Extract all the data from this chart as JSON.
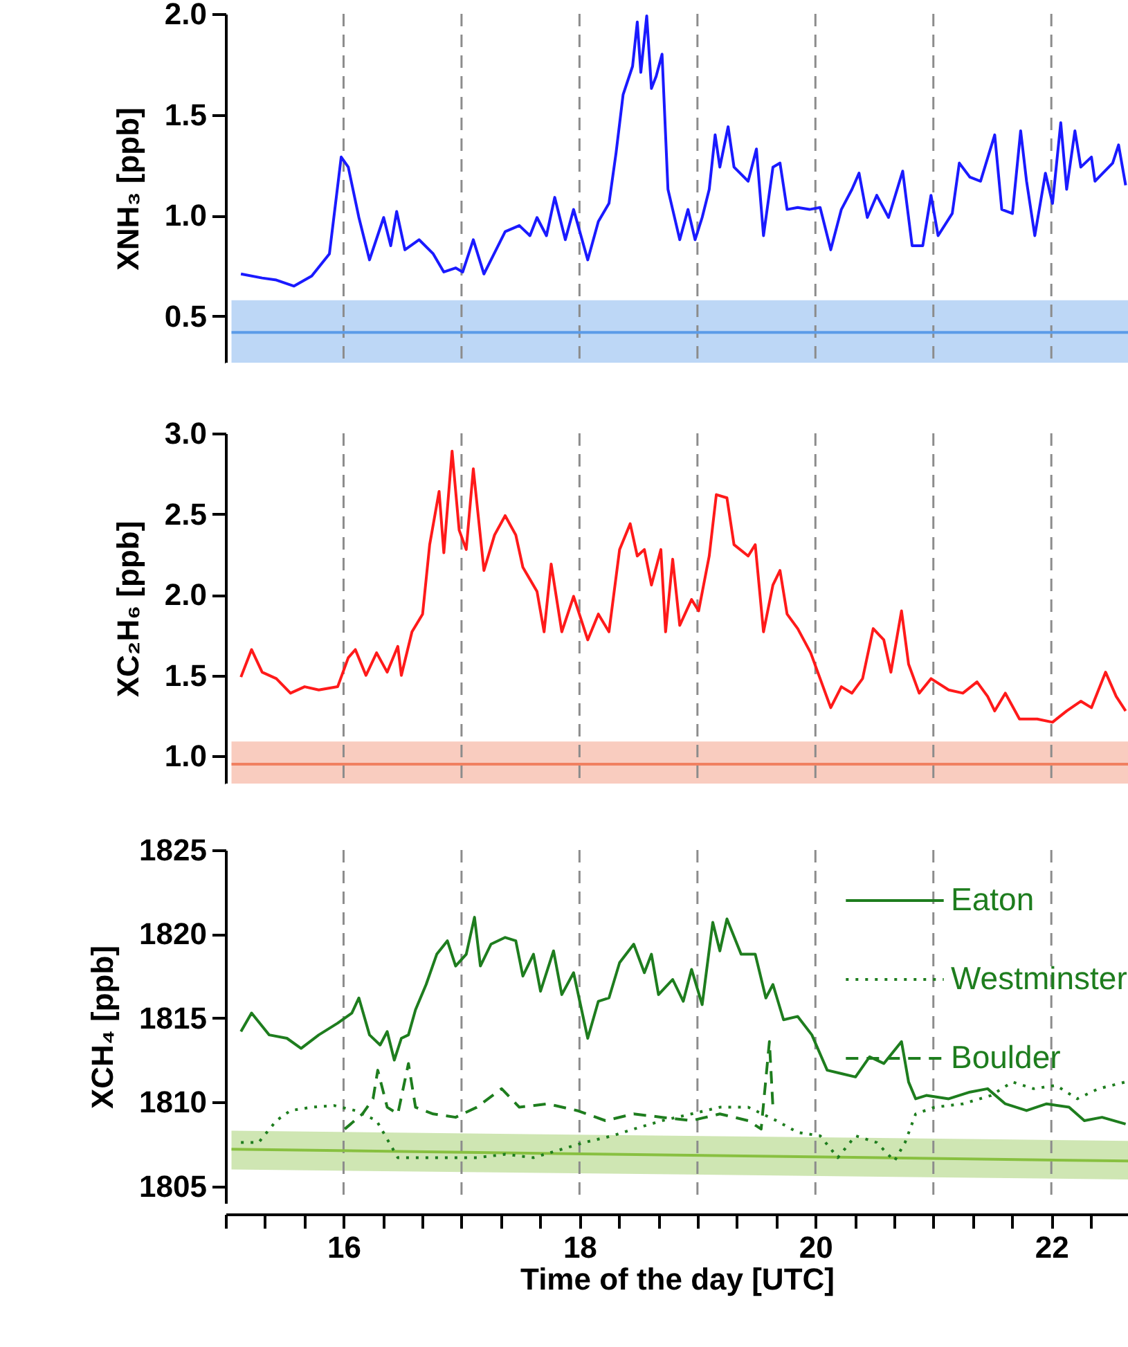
{
  "chart_data": [
    {
      "type": "line",
      "ylabel": "XNH₃ [ppb]",
      "xlim": [
        15,
        22.65
      ],
      "ylim": [
        0.27,
        2.0
      ],
      "yticks": [
        0.5,
        {
          "value": 1,
          "label": "1.0"
        },
        1.5,
        {
          "value": 2,
          "label": "2.0"
        }
      ],
      "tick_labels": "y",
      "ref_lines": [
        {
          "axis": "x",
          "value": 16,
          "color": "#8c8c8c",
          "line_style": "dashed"
        },
        {
          "axis": "x",
          "value": 17,
          "color": "#8c8c8c",
          "line_style": "dashed"
        },
        {
          "axis": "x",
          "value": 18,
          "color": "#8c8c8c",
          "line_style": "dashed"
        },
        {
          "axis": "x",
          "value": 19,
          "color": "#8c8c8c",
          "line_style": "dashed"
        },
        {
          "axis": "x",
          "value": 20,
          "color": "#8c8c8c",
          "line_style": "dashed"
        },
        {
          "axis": "x",
          "value": 21,
          "color": "#8c8c8c",
          "line_style": "dashed"
        },
        {
          "axis": "x",
          "value": 22,
          "color": "#8c8c8c",
          "line_style": "dashed"
        }
      ],
      "series": [
        {
          "color": "#1a1aff",
          "line_style": "solid",
          "x": [
            15.13,
            15.31,
            15.43,
            15.58,
            15.73,
            15.88,
            15.98,
            16.04,
            16.13,
            16.22,
            16.34,
            16.4,
            16.45,
            16.52,
            16.64,
            16.76,
            16.85,
            16.95,
            17.01,
            17.1,
            17.19,
            17.37,
            17.49,
            17.58,
            17.64,
            17.72,
            17.79,
            17.88,
            17.95,
            18.07,
            18.16,
            18.25,
            18.31,
            18.37,
            18.45,
            18.49,
            18.52,
            18.57,
            18.61,
            18.65,
            18.7,
            18.75,
            18.79,
            18.85,
            18.92,
            18.98,
            19.04,
            19.1,
            19.15,
            19.19,
            19.26,
            19.31,
            19.43,
            19.5,
            19.56,
            19.64,
            19.7,
            19.76,
            19.85,
            19.95,
            20.04,
            20.13,
            20.22,
            20.31,
            20.37,
            20.44,
            20.52,
            20.62,
            20.74,
            20.82,
            20.91,
            20.98,
            21.04,
            21.16,
            21.22,
            21.31,
            21.4,
            21.52,
            21.58,
            21.67,
            21.74,
            21.79,
            21.86,
            21.95,
            22.01,
            22.08,
            22.13,
            22.2,
            22.25,
            22.34,
            22.37,
            22.52,
            22.57,
            22.63
          ],
          "values": [
            0.71,
            0.69,
            0.68,
            0.65,
            0.7,
            0.81,
            1.29,
            1.24,
            0.99,
            0.78,
            0.99,
            0.85,
            1.02,
            0.83,
            0.88,
            0.81,
            0.72,
            0.74,
            0.72,
            0.88,
            0.71,
            0.92,
            0.95,
            0.9,
            0.99,
            0.9,
            1.09,
            0.88,
            1.03,
            0.78,
            0.97,
            1.06,
            1.31,
            1.6,
            1.74,
            1.96,
            1.71,
            1.99,
            1.63,
            1.69,
            1.8,
            1.13,
            1.03,
            0.88,
            1.03,
            0.88,
            0.99,
            1.13,
            1.4,
            1.24,
            1.44,
            1.24,
            1.17,
            1.33,
            0.9,
            1.24,
            1.26,
            1.03,
            1.04,
            1.03,
            1.04,
            0.83,
            1.03,
            1.13,
            1.21,
            0.99,
            1.1,
            0.99,
            1.22,
            0.85,
            0.85,
            1.1,
            0.9,
            1.01,
            1.26,
            1.19,
            1.17,
            1.4,
            1.03,
            1.01,
            1.42,
            1.17,
            0.9,
            1.21,
            1.06,
            1.46,
            1.13,
            1.42,
            1.24,
            1.29,
            1.17,
            1.26,
            1.35,
            1.15
          ]
        },
        {
          "color": "#5b9be8",
          "line_style": "solid",
          "x": [
            15.05,
            22.65
          ],
          "values": [
            0.42,
            0.42
          ],
          "lower": [
            0.27,
            0.27
          ],
          "upper": [
            0.58,
            0.58
          ]
        }
      ]
    },
    {
      "type": "line",
      "ylabel": "XC₂H₆ [ppb]",
      "xlim": [
        15,
        22.65
      ],
      "ylim": [
        0.83,
        3.0
      ],
      "yticks": [
        {
          "value": 1,
          "label": "1.0"
        },
        1.5,
        {
          "value": 2,
          "label": "2.0"
        },
        2.5,
        {
          "value": 3,
          "label": "3.0"
        }
      ],
      "tick_labels": "y",
      "ref_lines": [
        {
          "axis": "x",
          "value": 16,
          "color": "#8c8c8c",
          "line_style": "dashed"
        },
        {
          "axis": "x",
          "value": 17,
          "color": "#8c8c8c",
          "line_style": "dashed"
        },
        {
          "axis": "x",
          "value": 18,
          "color": "#8c8c8c",
          "line_style": "dashed"
        },
        {
          "axis": "x",
          "value": 19,
          "color": "#8c8c8c",
          "line_style": "dashed"
        },
        {
          "axis": "x",
          "value": 20,
          "color": "#8c8c8c",
          "line_style": "dashed"
        },
        {
          "axis": "x",
          "value": 21,
          "color": "#8c8c8c",
          "line_style": "dashed"
        },
        {
          "axis": "x",
          "value": 22,
          "color": "#8c8c8c",
          "line_style": "dashed"
        }
      ],
      "series": [
        {
          "color": "#ff1a1a",
          "line_style": "solid",
          "x": [
            15.13,
            15.22,
            15.31,
            15.43,
            15.55,
            15.67,
            15.79,
            15.95,
            16.04,
            16.1,
            16.19,
            16.28,
            16.37,
            16.46,
            16.49,
            16.58,
            16.67,
            16.73,
            16.81,
            16.85,
            16.92,
            16.98,
            17.04,
            17.1,
            17.19,
            17.28,
            17.37,
            17.46,
            17.52,
            17.64,
            17.7,
            17.76,
            17.85,
            17.95,
            18.07,
            18.16,
            18.25,
            18.34,
            18.43,
            18.49,
            18.55,
            18.61,
            18.69,
            18.73,
            18.79,
            18.85,
            18.95,
            19.01,
            19.1,
            19.16,
            19.25,
            19.31,
            19.43,
            19.49,
            19.56,
            19.64,
            19.7,
            19.76,
            19.85,
            19.96,
            20.04,
            20.13,
            20.22,
            20.31,
            20.4,
            20.49,
            20.58,
            20.64,
            20.73,
            20.79,
            20.88,
            20.98,
            21.13,
            21.25,
            21.37,
            21.46,
            21.52,
            21.61,
            21.73,
            21.88,
            22.01,
            22.13,
            22.25,
            22.34,
            22.46,
            22.55,
            22.63
          ],
          "values": [
            1.49,
            1.66,
            1.52,
            1.48,
            1.39,
            1.43,
            1.41,
            1.43,
            1.61,
            1.66,
            1.5,
            1.64,
            1.52,
            1.68,
            1.5,
            1.77,
            1.88,
            2.31,
            2.64,
            2.26,
            2.89,
            2.4,
            2.28,
            2.78,
            2.15,
            2.37,
            2.49,
            2.37,
            2.17,
            2.02,
            1.77,
            2.19,
            1.77,
            1.99,
            1.72,
            1.88,
            1.77,
            2.28,
            2.44,
            2.24,
            2.28,
            2.06,
            2.28,
            1.77,
            2.22,
            1.81,
            1.97,
            1.9,
            2.24,
            2.62,
            2.6,
            2.31,
            2.24,
            2.31,
            1.77,
            2.06,
            2.15,
            1.88,
            1.79,
            1.64,
            1.48,
            1.3,
            1.43,
            1.39,
            1.48,
            1.79,
            1.72,
            1.52,
            1.9,
            1.57,
            1.39,
            1.48,
            1.41,
            1.39,
            1.46,
            1.37,
            1.28,
            1.39,
            1.23,
            1.23,
            1.21,
            1.28,
            1.34,
            1.3,
            1.52,
            1.37,
            1.28
          ]
        },
        {
          "color": "#f08060",
          "line_style": "solid",
          "x": [
            15.05,
            22.65
          ],
          "values": [
            0.95,
            0.95
          ],
          "lower": [
            0.83,
            0.83
          ],
          "upper": [
            1.09,
            1.09
          ]
        }
      ]
    },
    {
      "type": "line",
      "xlabel": "Time of the day [UTC]",
      "ylabel": "XCH₄ [ppb]",
      "xlim": [
        15,
        22.65
      ],
      "ylim": [
        1804,
        1825
      ],
      "yticks": [
        1805,
        1810,
        1815,
        1820,
        1825
      ],
      "xticks": [
        {
          "value": 15,
          "label": null
        },
        {
          "value": 15.333,
          "label": null
        },
        {
          "value": 15.667,
          "label": null
        },
        16,
        {
          "value": 16.333,
          "label": null
        },
        {
          "value": 16.667,
          "label": null
        },
        {
          "value": 17,
          "label": null
        },
        {
          "value": 17.333,
          "label": null
        },
        {
          "value": 17.667,
          "label": null
        },
        18,
        {
          "value": 18.333,
          "label": null
        },
        {
          "value": 18.667,
          "label": null
        },
        {
          "value": 19,
          "label": null
        },
        {
          "value": 19.333,
          "label": null
        },
        {
          "value": 19.667,
          "label": null
        },
        20,
        {
          "value": 20.333,
          "label": null
        },
        {
          "value": 20.667,
          "label": null
        },
        {
          "value": 21,
          "label": null
        },
        {
          "value": 21.333,
          "label": null
        },
        {
          "value": 21.667,
          "label": null
        },
        22,
        {
          "value": 22.333,
          "label": null
        }
      ],
      "legend": "top right",
      "ref_lines": [
        {
          "axis": "x",
          "value": 16,
          "color": "#8c8c8c",
          "line_style": "dashed"
        },
        {
          "axis": "x",
          "value": 17,
          "color": "#8c8c8c",
          "line_style": "dashed"
        },
        {
          "axis": "x",
          "value": 18,
          "color": "#8c8c8c",
          "line_style": "dashed"
        },
        {
          "axis": "x",
          "value": 19,
          "color": "#8c8c8c",
          "line_style": "dashed"
        },
        {
          "axis": "x",
          "value": 20,
          "color": "#8c8c8c",
          "line_style": "dashed"
        },
        {
          "axis": "x",
          "value": 21,
          "color": "#8c8c8c",
          "line_style": "dashed"
        },
        {
          "axis": "x",
          "value": 22,
          "color": "#8c8c8c",
          "line_style": "dashed"
        }
      ],
      "series": [
        {
          "name": "Eaton",
          "color": "#1e7d1e",
          "line_style": "solid",
          "x": [
            15.13,
            15.22,
            15.37,
            15.52,
            15.64,
            15.79,
            15.95,
            16.07,
            16.13,
            16.22,
            16.31,
            16.37,
            16.43,
            16.49,
            16.55,
            16.61,
            16.7,
            16.79,
            16.88,
            16.95,
            17.04,
            17.11,
            17.16,
            17.25,
            17.37,
            17.46,
            17.52,
            17.61,
            17.67,
            17.78,
            17.85,
            17.95,
            18.07,
            18.16,
            18.25,
            18.34,
            18.46,
            18.55,
            18.61,
            18.67,
            18.79,
            18.88,
            18.95,
            19.04,
            19.13,
            19.19,
            19.25,
            19.37,
            19.49,
            19.58,
            19.64,
            19.73,
            19.85,
            19.97,
            20.1,
            20.22,
            20.34,
            20.46,
            20.58,
            20.73,
            20.79,
            20.85,
            20.94,
            21.13,
            21.31,
            21.46,
            21.61,
            21.79,
            21.96,
            22.15,
            22.28,
            22.43,
            22.63
          ],
          "values": [
            1814.2,
            1815.3,
            1814.0,
            1813.8,
            1813.2,
            1814.0,
            1814.7,
            1815.3,
            1816.2,
            1814.0,
            1813.4,
            1814.2,
            1812.5,
            1813.8,
            1814.0,
            1815.5,
            1817.0,
            1818.8,
            1819.6,
            1818.1,
            1818.8,
            1821.0,
            1818.1,
            1819.4,
            1819.8,
            1819.6,
            1817.5,
            1818.8,
            1816.6,
            1819.0,
            1816.4,
            1817.7,
            1813.8,
            1816.0,
            1816.2,
            1818.3,
            1819.4,
            1817.7,
            1818.8,
            1816.4,
            1817.3,
            1816.0,
            1817.9,
            1815.8,
            1820.7,
            1819.0,
            1820.9,
            1818.8,
            1818.8,
            1816.2,
            1817.0,
            1814.9,
            1815.1,
            1814.0,
            1811.9,
            1811.7,
            1811.5,
            1812.7,
            1812.3,
            1813.6,
            1811.2,
            1810.2,
            1810.4,
            1810.2,
            1810.6,
            1810.8,
            1809.9,
            1809.5,
            1809.9,
            1809.7,
            1808.9,
            1809.1,
            1808.7
          ]
        },
        {
          "name": "Westminster",
          "color": "#1e7d1e",
          "line_style": "dotted",
          "x": [
            15.13,
            15.28,
            15.43,
            15.55,
            15.73,
            15.92,
            16.1,
            16.28,
            16.37,
            16.46,
            16.64,
            16.88,
            17.13,
            17.37,
            17.61,
            17.85,
            18.04,
            18.28,
            18.46,
            18.7,
            18.95,
            19.19,
            19.43,
            19.67,
            19.85,
            20.04,
            20.19,
            20.34,
            20.52,
            20.67,
            20.76,
            20.85,
            21.01,
            21.25,
            21.49,
            21.67,
            21.85,
            22.04,
            22.22,
            22.4,
            22.63
          ],
          "values": [
            1807.6,
            1807.6,
            1808.9,
            1809.5,
            1809.7,
            1809.8,
            1809.5,
            1808.9,
            1807.8,
            1806.7,
            1806.7,
            1806.7,
            1806.7,
            1806.9,
            1806.7,
            1807.2,
            1807.6,
            1808.0,
            1808.4,
            1808.9,
            1809.3,
            1809.7,
            1809.7,
            1808.9,
            1808.2,
            1808.0,
            1806.7,
            1808.0,
            1807.6,
            1806.5,
            1807.6,
            1809.3,
            1809.7,
            1809.9,
            1810.4,
            1811.2,
            1810.8,
            1811.0,
            1810.2,
            1810.8,
            1811.2
          ]
        },
        {
          "name": "Boulder",
          "color": "#1e7d1e",
          "line_style": "dashed",
          "x": [
            16.01,
            16.16,
            16.25,
            16.29,
            16.37,
            16.46,
            16.55,
            16.61,
            16.76,
            16.95,
            17.13,
            17.34,
            17.49,
            17.73,
            17.98,
            18.22,
            18.46,
            18.7,
            18.95,
            19.19,
            19.43,
            19.54,
            19.61,
            19.64
          ],
          "values": [
            1808.4,
            1809.3,
            1810.2,
            1811.9,
            1809.7,
            1809.3,
            1812.3,
            1809.7,
            1809.3,
            1809.1,
            1809.7,
            1810.8,
            1809.7,
            1809.9,
            1809.5,
            1808.9,
            1809.3,
            1809.1,
            1808.9,
            1809.3,
            1808.9,
            1808.4,
            1813.6,
            1809.7
          ]
        },
        {
          "color": "#88c040",
          "line_style": "solid",
          "x": [
            15.05,
            22.65
          ],
          "values": [
            1807.2,
            1806.5
          ],
          "lower": [
            1806.0,
            1805.4
          ],
          "upper": [
            1808.3,
            1807.7
          ]
        }
      ]
    }
  ]
}
